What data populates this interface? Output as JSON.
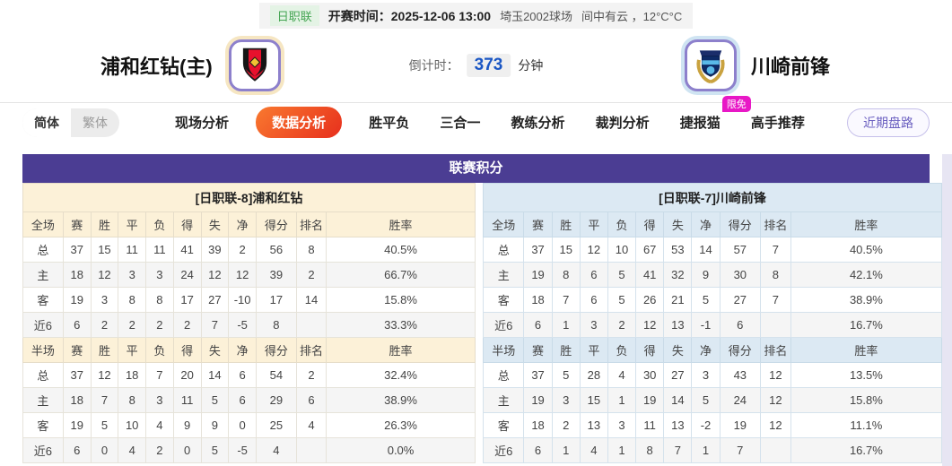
{
  "topbar": {
    "league_badge": "日职联",
    "kickoff_label": "开赛时间：",
    "kickoff_time": "2025-12-06 13:00",
    "venue": "埼玉2002球场",
    "weather": "间中有云 ，12°C°C"
  },
  "header": {
    "home_team": "浦和红钻(主)",
    "away_team": "川崎前锋",
    "countdown_label": "倒计时：",
    "countdown_value": "373",
    "countdown_unit": "分钟"
  },
  "nav": {
    "lang_simplified": "简体",
    "lang_traditional": "繁体",
    "tabs": [
      "现场分析",
      "数据分析",
      "胜平负",
      "三合一",
      "教练分析",
      "裁判分析",
      "捷报猫",
      "高手推荐"
    ],
    "active_tab": "数据分析",
    "limited_free_badge": "限免",
    "recent_button": "近期盘路"
  },
  "league_table": {
    "title": "联赛积分",
    "columns_full": [
      "全场",
      "赛",
      "胜",
      "平",
      "负",
      "得",
      "失",
      "净",
      "得分",
      "排名",
      "胜率"
    ],
    "columns_half": [
      "半场",
      "赛",
      "胜",
      "平",
      "负",
      "得",
      "失",
      "净",
      "得分",
      "排名",
      "胜率"
    ],
    "home": {
      "section_title": "[日职联-8]浦和红钻",
      "full": [
        [
          "总",
          "37",
          "15",
          "11",
          "11",
          "41",
          "39",
          "2",
          "56",
          "8",
          "40.5%"
        ],
        [
          "主",
          "18",
          "12",
          "3",
          "3",
          "24",
          "12",
          "12",
          "39",
          "2",
          "66.7%"
        ],
        [
          "客",
          "19",
          "3",
          "8",
          "8",
          "17",
          "27",
          "-10",
          "17",
          "14",
          "15.8%"
        ],
        [
          "近6",
          "6",
          "2",
          "2",
          "2",
          "2",
          "7",
          "-5",
          "8",
          "",
          "33.3%"
        ]
      ],
      "half": [
        [
          "总",
          "37",
          "12",
          "18",
          "7",
          "20",
          "14",
          "6",
          "54",
          "2",
          "32.4%"
        ],
        [
          "主",
          "18",
          "7",
          "8",
          "3",
          "11",
          "5",
          "6",
          "29",
          "6",
          "38.9%"
        ],
        [
          "客",
          "19",
          "5",
          "10",
          "4",
          "9",
          "9",
          "0",
          "25",
          "4",
          "26.3%"
        ],
        [
          "近6",
          "6",
          "0",
          "4",
          "2",
          "0",
          "5",
          "-5",
          "4",
          "",
          "0.0%"
        ]
      ]
    },
    "away": {
      "section_title": "[日职联-7]川崎前锋",
      "full": [
        [
          "总",
          "37",
          "15",
          "12",
          "10",
          "67",
          "53",
          "14",
          "57",
          "7",
          "40.5%"
        ],
        [
          "主",
          "19",
          "8",
          "6",
          "5",
          "41",
          "32",
          "9",
          "30",
          "8",
          "42.1%"
        ],
        [
          "客",
          "18",
          "7",
          "6",
          "5",
          "26",
          "21",
          "5",
          "27",
          "7",
          "38.9%"
        ],
        [
          "近6",
          "6",
          "1",
          "3",
          "2",
          "12",
          "13",
          "-1",
          "6",
          "",
          "16.7%"
        ]
      ],
      "half": [
        [
          "总",
          "37",
          "5",
          "28",
          "4",
          "30",
          "27",
          "3",
          "43",
          "12",
          "13.5%"
        ],
        [
          "主",
          "19",
          "3",
          "15",
          "1",
          "19",
          "14",
          "5",
          "24",
          "12",
          "15.8%"
        ],
        [
          "客",
          "18",
          "2",
          "13",
          "3",
          "11",
          "13",
          "-2",
          "19",
          "12",
          "11.1%"
        ],
        [
          "近6",
          "6",
          "1",
          "4",
          "1",
          "8",
          "7",
          "1",
          "7",
          "",
          "16.7%"
        ]
      ]
    }
  },
  "colors": {
    "title_purple": "#4b3d93",
    "active_tab_orange": "#e72f1d",
    "home_header_cream": "#fcf1d8",
    "away_header_blue": "#dce9f3",
    "home_row_label_red": "#d0281e",
    "away_row_label_blue": "#2233cc",
    "countdown_blue": "#1a56c4",
    "league_badge_green": "#45a553",
    "limited_free_magenta": "#e818c6"
  }
}
